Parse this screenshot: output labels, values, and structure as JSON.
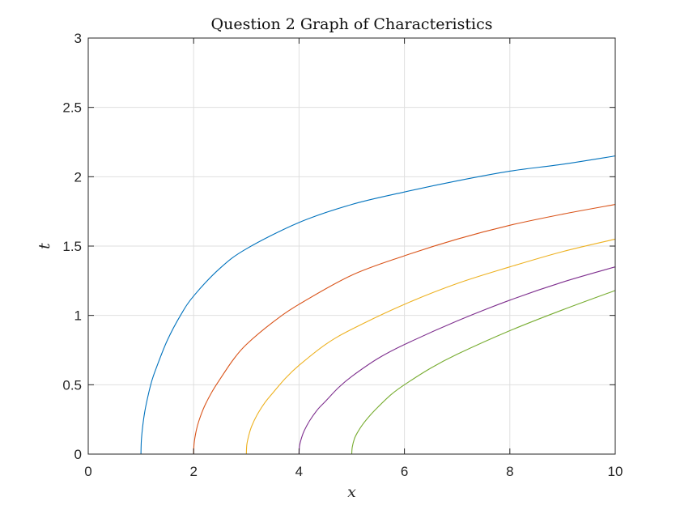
{
  "chart_data": {
    "type": "line",
    "title": "Question 2 Graph of Characteristics",
    "xlabel": "x",
    "ylabel": "t",
    "xlim": [
      0,
      10
    ],
    "ylim": [
      0,
      3
    ],
    "xticks": [
      0,
      2,
      4,
      6,
      8,
      10
    ],
    "xtick_labels": [
      "0",
      "2",
      "4",
      "6",
      "8",
      "10"
    ],
    "yticks": [
      0,
      0.5,
      1,
      1.5,
      2,
      2.5,
      3
    ],
    "ytick_labels": [
      "0",
      "0.5",
      "1",
      "1.5",
      "2",
      "2.5",
      "3"
    ],
    "grid": true,
    "legend": "none",
    "series": [
      {
        "color": "#0072BD",
        "x": [
          0,
          1,
          1.01,
          1.05,
          1.1,
          1.2,
          1.3,
          1.5,
          1.75,
          2,
          2.5,
          3,
          4,
          5,
          6,
          7,
          8,
          9,
          10
        ],
        "y": [
          0,
          0,
          0.11,
          0.25,
          0.36,
          0.52,
          0.63,
          0.82,
          1.0,
          1.14,
          1.34,
          1.48,
          1.67,
          1.8,
          1.89,
          1.97,
          2.04,
          2.09,
          2.15
        ]
      },
      {
        "color": "#D95319",
        "x": [
          0,
          2,
          2.01,
          2.05,
          2.1,
          2.2,
          2.35,
          2.5,
          2.75,
          3,
          3.5,
          4,
          5,
          6,
          7,
          8,
          9,
          10
        ],
        "y": [
          0,
          0,
          0.08,
          0.17,
          0.24,
          0.34,
          0.45,
          0.54,
          0.68,
          0.79,
          0.95,
          1.08,
          1.29,
          1.43,
          1.55,
          1.65,
          1.73,
          1.8
        ]
      },
      {
        "color": "#EDB120",
        "x": [
          0,
          3,
          3.01,
          3.05,
          3.1,
          3.2,
          3.35,
          3.5,
          3.75,
          4,
          4.5,
          5,
          6,
          7,
          8,
          9,
          10
        ],
        "y": [
          0,
          0,
          0.07,
          0.14,
          0.2,
          0.28,
          0.37,
          0.44,
          0.55,
          0.64,
          0.79,
          0.9,
          1.08,
          1.23,
          1.35,
          1.46,
          1.55
        ]
      },
      {
        "color": "#7E2F8E",
        "x": [
          0,
          4,
          4.01,
          4.05,
          4.1,
          4.2,
          4.35,
          4.5,
          4.75,
          5,
          5.5,
          6,
          7,
          8,
          9,
          10
        ],
        "y": [
          0,
          0,
          0.06,
          0.12,
          0.17,
          0.24,
          0.32,
          0.38,
          0.48,
          0.56,
          0.69,
          0.79,
          0.96,
          1.11,
          1.24,
          1.35
        ]
      },
      {
        "color": "#77AC30",
        "x": [
          0,
          5,
          5.01,
          5.05,
          5.1,
          5.2,
          5.35,
          5.5,
          5.75,
          6,
          6.5,
          7,
          8,
          9,
          10
        ],
        "y": [
          0,
          0,
          0.05,
          0.11,
          0.15,
          0.21,
          0.28,
          0.34,
          0.43,
          0.5,
          0.62,
          0.72,
          0.89,
          1.04,
          1.18
        ]
      }
    ]
  }
}
